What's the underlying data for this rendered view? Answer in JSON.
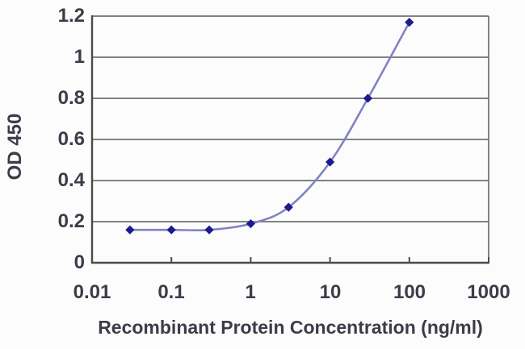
{
  "chart_data": {
    "type": "line",
    "title": "",
    "xlabel": "Recombinant Protein Concentration (ng/ml)",
    "ylabel": "OD 450",
    "xscale": "log",
    "xlim": [
      0.01,
      1000
    ],
    "ylim": [
      0,
      1.2
    ],
    "xticks": [
      "0.01",
      "0.1",
      "1",
      "10",
      "100",
      "1000"
    ],
    "xtick_values": [
      0.01,
      0.1,
      1,
      10,
      100,
      1000
    ],
    "yticks": [
      "0",
      "0.2",
      "0.4",
      "0.6",
      "0.8",
      "1",
      "1.2"
    ],
    "ytick_values": [
      0,
      0.2,
      0.4,
      0.6,
      0.8,
      1,
      1.2
    ],
    "grid": "horizontal",
    "legend": "none",
    "series": [
      {
        "name": "OD 450",
        "x": [
          0.03,
          0.1,
          0.3,
          1,
          3,
          10,
          30,
          100
        ],
        "y": [
          0.16,
          0.16,
          0.16,
          0.19,
          0.27,
          0.49,
          0.8,
          1.17
        ],
        "marker": "diamond",
        "smooth": true
      }
    ],
    "colors": {
      "line": "#8282c4",
      "marker": "#1b1b8e",
      "axis": "#4a4a4a",
      "grid": "#707070",
      "text": "#3c3c49",
      "background": "#fcfcfc"
    }
  }
}
